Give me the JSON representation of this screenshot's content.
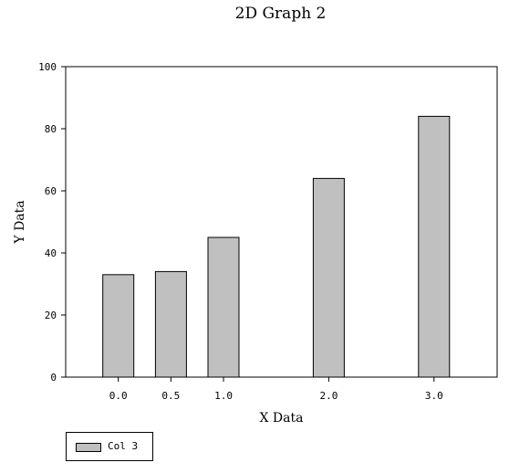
{
  "chart_data": {
    "type": "bar",
    "title": "2D Graph 2",
    "xlabel": "X Data",
    "ylabel": "Y Data",
    "x": [
      0.0,
      0.5,
      1.0,
      2.0,
      3.0
    ],
    "x_tick_labels": [
      "0.0",
      "0.5",
      "1.0",
      "2.0",
      "3.0"
    ],
    "xlim": [
      -0.5,
      3.6
    ],
    "ylim": [
      0,
      100
    ],
    "y_ticks": [
      0,
      20,
      40,
      60,
      80,
      100
    ],
    "grid": false,
    "legend_position": "bottom-left",
    "series": [
      {
        "name": "Col 3",
        "values": [
          33,
          34,
          45,
          64,
          84
        ],
        "color": "#c0c0c0"
      }
    ]
  }
}
